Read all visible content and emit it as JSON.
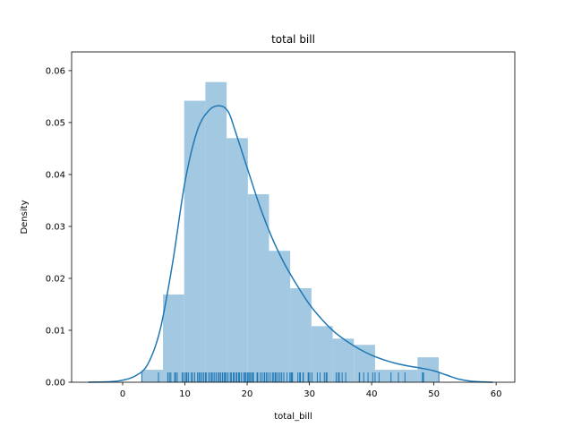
{
  "chart_data": {
    "type": "bar",
    "title": "total bill",
    "xlabel": "total_bill",
    "ylabel": "Density",
    "xlim": [
      -8.2,
      63.0
    ],
    "ylim": [
      0.0,
      0.0636
    ],
    "xticks": [
      0,
      10,
      20,
      30,
      40,
      50,
      60
    ],
    "yticks": [
      0.0,
      0.01,
      0.02,
      0.03,
      0.04,
      0.05,
      0.06
    ],
    "xtick_labels": [
      "0",
      "10",
      "20",
      "30",
      "40",
      "50",
      "60"
    ],
    "ytick_labels": [
      "0.00",
      "0.01",
      "0.02",
      "0.03",
      "0.04",
      "0.05",
      "0.06"
    ],
    "grid": false,
    "colors": {
      "hist_fill": "#a3c8e1",
      "kde_line": "#1f77b4",
      "rug": "#1f77b4",
      "axes": "#000000"
    },
    "histogram": {
      "bin_edges": [
        3.07,
        6.48,
        9.88,
        13.29,
        16.7,
        20.11,
        23.51,
        26.92,
        30.33,
        33.74,
        37.14,
        40.55,
        43.96,
        47.37,
        50.77
      ],
      "densities": [
        0.0024,
        0.0169,
        0.0542,
        0.0578,
        0.047,
        0.0362,
        0.0253,
        0.0181,
        0.0108,
        0.0084,
        0.0072,
        0.0024,
        0.0024,
        0.0048
      ]
    },
    "kde": {
      "x": [
        -5.5,
        -2,
        0,
        2,
        4,
        6,
        8,
        10,
        12,
        14,
        15.8,
        17,
        18,
        20,
        22,
        24,
        26,
        28,
        30,
        32,
        34,
        36,
        38,
        40,
        42,
        44,
        46,
        48,
        50,
        52,
        54,
        56,
        59.5
      ],
      "y": [
        0.0,
        0.0001,
        0.0004,
        0.0012,
        0.0034,
        0.01,
        0.0228,
        0.0385,
        0.0485,
        0.0525,
        0.0532,
        0.052,
        0.0487,
        0.0413,
        0.034,
        0.0278,
        0.0228,
        0.0187,
        0.015,
        0.0121,
        0.0097,
        0.0079,
        0.0064,
        0.0052,
        0.0043,
        0.0036,
        0.0031,
        0.0027,
        0.0022,
        0.0014,
        0.0006,
        0.0002,
        0.0
      ]
    },
    "rug": [
      3.07,
      5.75,
      7.25,
      7.51,
      7.74,
      8.35,
      8.51,
      8.77,
      9.55,
      9.78,
      10.07,
      10.27,
      10.33,
      10.59,
      11.02,
      11.24,
      11.59,
      12.03,
      12.26,
      12.46,
      12.74,
      13.0,
      13.28,
      13.42,
      13.81,
      14.07,
      14.31,
      14.52,
      14.78,
      15.04,
      15.36,
      15.53,
      15.77,
      16.04,
      16.29,
      16.45,
      16.66,
      16.93,
      17.29,
      17.46,
      17.78,
      17.92,
      18.24,
      18.35,
      18.64,
      18.78,
      19.08,
      19.44,
      19.65,
      19.82,
      20.08,
      20.27,
      20.45,
      20.69,
      20.9,
      21.01,
      21.58,
      21.7,
      22.12,
      22.42,
      22.75,
      22.82,
      23.1,
      23.33,
      23.68,
      24.06,
      24.27,
      24.52,
      24.71,
      25.0,
      25.29,
      25.56,
      25.89,
      26.41,
      26.86,
      27.05,
      27.2,
      27.28,
      28.15,
      28.44,
      28.55,
      28.97,
      29.03,
      29.8,
      29.85,
      30.06,
      30.4,
      31.27,
      31.71,
      32.4,
      32.68,
      32.83,
      34.3,
      34.63,
      34.81,
      35.26,
      35.83,
      38.01,
      38.07,
      38.73,
      39.42,
      40.17,
      40.55,
      41.19,
      43.11,
      44.3,
      45.35,
      48.17,
      48.27,
      48.33,
      50.81
    ]
  }
}
